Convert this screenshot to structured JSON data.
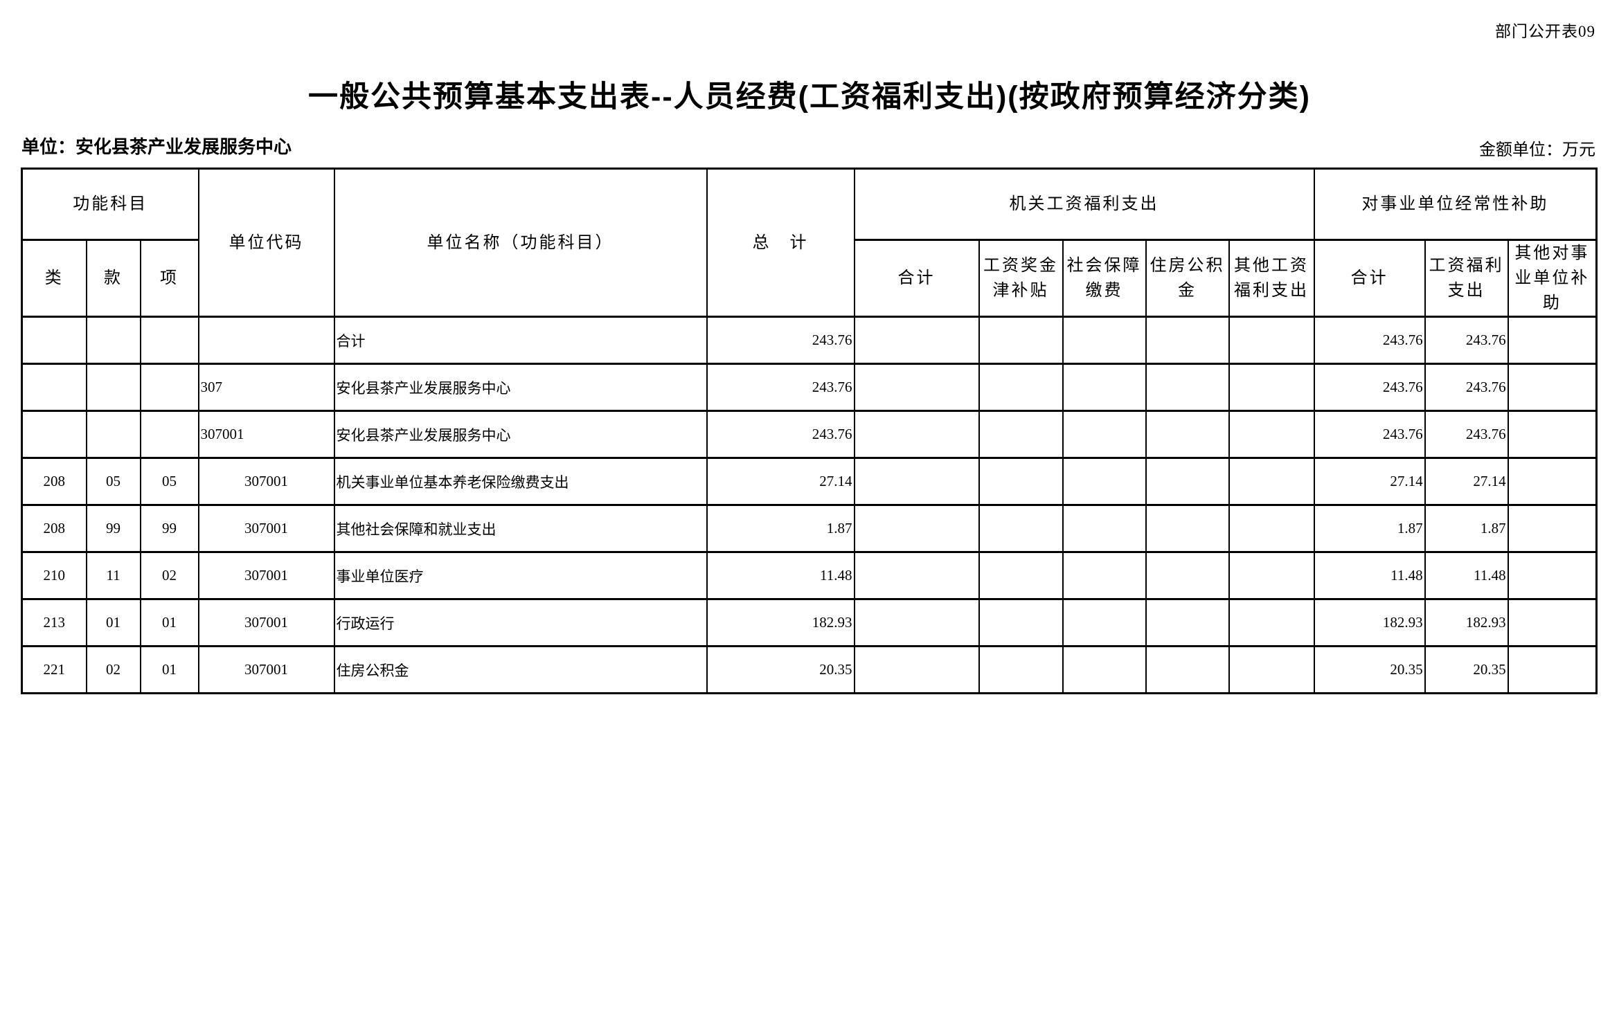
{
  "page": {
    "doc_label": "部门公开表09",
    "title": "一般公共预算基本支出表--人员经费(工资福利支出)(按政府预算经济分类)",
    "unit_line": "单位：安化县茶产业发展服务中心",
    "amount_unit_line": "金额单位：万元"
  },
  "table": {
    "headers": {
      "function_subject_group": "功能科目",
      "class_col": "类",
      "section_col": "款",
      "item_col": "项",
      "unit_code_col": "单位代码",
      "unit_name_col": "单位名称（功能科目）",
      "grand_total_col": "总　计",
      "gov_wage_welfare_group": "机关工资福利支出",
      "gov_sub_cols": [
        "合计",
        "工资奖金津补贴",
        "社会保障缴费",
        "住房公积金",
        "其他工资福利支出"
      ],
      "institution_subsidy_group": "对事业单位经常性补助",
      "inst_sub_cols": [
        "合计",
        "工资福利支出",
        "其他对事业单位补助"
      ]
    },
    "rows": [
      {
        "class": "",
        "section": "",
        "item": "",
        "unit_code": "",
        "code_style": "left",
        "unit_name": "合计",
        "name_indent": 0,
        "grand_total": "243.76",
        "gov": [
          "",
          "",
          "",
          "",
          ""
        ],
        "inst": [
          "243.76",
          "243.76",
          ""
        ]
      },
      {
        "class": "",
        "section": "",
        "item": "",
        "unit_code": "307",
        "code_style": "left",
        "unit_name": "安化县茶产业发展服务中心",
        "name_indent": 0,
        "grand_total": "243.76",
        "gov": [
          "",
          "",
          "",
          "",
          ""
        ],
        "inst": [
          "243.76",
          "243.76",
          ""
        ]
      },
      {
        "class": "",
        "section": "",
        "item": "",
        "unit_code": "307001",
        "code_style": "indent",
        "unit_name": "安化县茶产业发展服务中心",
        "name_indent": 1,
        "grand_total": "243.76",
        "gov": [
          "",
          "",
          "",
          "",
          ""
        ],
        "inst": [
          "243.76",
          "243.76",
          ""
        ]
      },
      {
        "class": "208",
        "section": "05",
        "item": "05",
        "unit_code": "307001",
        "code_style": "center",
        "unit_name": "机关事业单位基本养老保险缴费支出",
        "name_indent": 2,
        "grand_total": "27.14",
        "gov": [
          "",
          "",
          "",
          "",
          ""
        ],
        "inst": [
          "27.14",
          "27.14",
          ""
        ]
      },
      {
        "class": "208",
        "section": "99",
        "item": "99",
        "unit_code": "307001",
        "code_style": "center",
        "unit_name": "其他社会保障和就业支出",
        "name_indent": 2,
        "grand_total": "1.87",
        "gov": [
          "",
          "",
          "",
          "",
          ""
        ],
        "inst": [
          "1.87",
          "1.87",
          ""
        ]
      },
      {
        "class": "210",
        "section": "11",
        "item": "02",
        "unit_code": "307001",
        "code_style": "center",
        "unit_name": "事业单位医疗",
        "name_indent": 2,
        "grand_total": "11.48",
        "gov": [
          "",
          "",
          "",
          "",
          ""
        ],
        "inst": [
          "11.48",
          "11.48",
          ""
        ]
      },
      {
        "class": "213",
        "section": "01",
        "item": "01",
        "unit_code": "307001",
        "code_style": "center",
        "unit_name": "行政运行",
        "name_indent": 2,
        "grand_total": "182.93",
        "gov": [
          "",
          "",
          "",
          "",
          ""
        ],
        "inst": [
          "182.93",
          "182.93",
          ""
        ]
      },
      {
        "class": "221",
        "section": "02",
        "item": "01",
        "unit_code": "307001",
        "code_style": "center",
        "unit_name": "住房公积金",
        "name_indent": 2,
        "grand_total": "20.35",
        "gov": [
          "",
          "",
          "",
          "",
          ""
        ],
        "inst": [
          "20.35",
          "20.35",
          ""
        ]
      }
    ]
  }
}
